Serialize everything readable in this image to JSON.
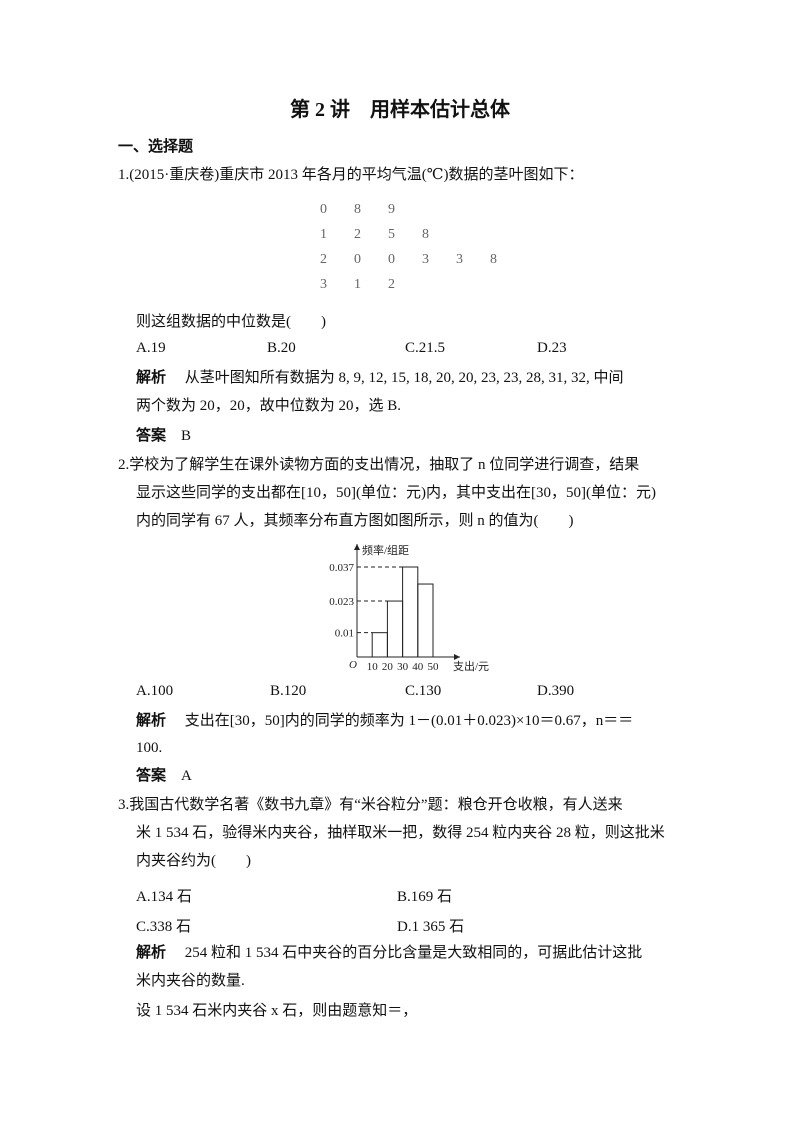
{
  "title": "第 2 讲　用样本估计总体",
  "section": "一、选择题",
  "q1": {
    "stem": "1.(2015·重庆卷)重庆市 2013 年各月的平均气温(℃)数据的茎叶图如下：",
    "stemleaf": [
      [
        "0",
        "8",
        "9"
      ],
      [
        "1",
        "2",
        "5",
        "8"
      ],
      [
        "2",
        "0",
        "0",
        "3",
        "3",
        "8"
      ],
      [
        "3",
        "1",
        "2"
      ]
    ],
    "question": "则这组数据的中位数是(　　)",
    "options": [
      "A.19",
      "B.20",
      "C.21.5",
      "D.23"
    ],
    "analysis_label": "解析",
    "analysis": [
      "从茎叶图知所有数据为 8, 9, 12, 15, 18, 20, 20, 23, 23, 28, 31, 32, 中间",
      "两个数为 20，20，故中位数为 20，选 B."
    ],
    "answer_label": "答案",
    "answer": "B"
  },
  "q2": {
    "stem": [
      "2.学校为了解学生在课外读物方面的支出情况，抽取了 n 位同学进行调查，结果",
      "显示这些同学的支出都在[10，50](单位：元)内，其中支出在[30，50](单位：元)",
      "内的同学有 67 人，其频率分布直方图如图所示，则 n 的值为(　　)"
    ],
    "options": [
      "A.100",
      "B.120",
      "C.130",
      "D.390"
    ],
    "analysis_label": "解析",
    "analysis": [
      "支出在[30，50]内的同学的频率为 1－(0.01＋0.023)×10＝0.67，n＝＝",
      "100."
    ],
    "answer_label": "答案",
    "answer": "A"
  },
  "chart_data": {
    "type": "bar",
    "categories": [
      "[10,20)",
      "[20,30)",
      "[30,40)",
      "[40,50]"
    ],
    "bin_edges": [
      10,
      20,
      30,
      40,
      50
    ],
    "values": [
      0.01,
      0.023,
      0.037,
      0.03
    ],
    "ylabel": "频率/组距",
    "xlabel": "支出/元",
    "origin_label": "O",
    "yticks": [
      "0.01",
      "0.023",
      "0.037"
    ],
    "xticks": [
      "10",
      "20",
      "30",
      "40",
      "50"
    ],
    "grid": false
  },
  "q3": {
    "stem": [
      "3.我国古代数学名著《数书九章》有“米谷粒分”题：粮仓开仓收粮，有人送来",
      "米 1 534 石，验得米内夹谷，抽样取米一把，数得 254 粒内夹谷 28 粒，则这批米",
      "内夹谷约为(　　)"
    ],
    "options": [
      "A.134 石",
      "B.169 石",
      "C.338 石",
      "D.1 365 石"
    ],
    "analysis_label": "解析",
    "analysis": [
      "254 粒和 1 534 石中夹谷的百分比含量是大致相同的，可据此估计这批",
      "米内夹谷的数量.",
      "设 1 534 石米内夹谷 x 石，则由题意知＝，"
    ]
  }
}
